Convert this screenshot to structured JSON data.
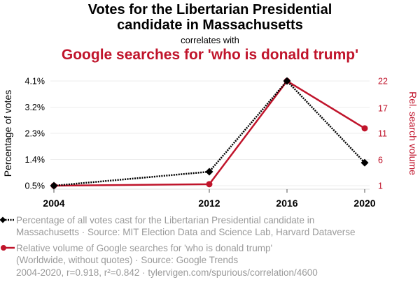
{
  "header": {
    "title_line1": "Votes for the Libertarian Presidential",
    "title_line2": "candidate in Massachusetts",
    "subtitle": "correlates with",
    "title2": "Google searches for 'who is donald trump'"
  },
  "colors": {
    "series1": "#000000",
    "series2": "#c0142b",
    "grid": "#eeeeee",
    "legend_text": "#9a9a9a"
  },
  "chart_data": {
    "type": "line",
    "x": [
      2004,
      2012,
      2016,
      2020
    ],
    "xticks": [
      "2004",
      "2012",
      "2016",
      "2020"
    ],
    "series": [
      {
        "name": "Percentage of votes",
        "axis": "left",
        "style": "dotted",
        "marker": "diamond",
        "values": [
          0.5,
          0.98,
          4.1,
          1.29
        ]
      },
      {
        "name": "Rel. search volume",
        "axis": "right",
        "style": "solid",
        "marker": "circle",
        "values": [
          1,
          1.3,
          22,
          12.5
        ]
      }
    ],
    "left_axis": {
      "label": "Percentage of votes",
      "ticks": [
        "0.5%",
        "1.4%",
        "2.3%",
        "3.2%",
        "4.1%"
      ],
      "tick_values": [
        0.5,
        1.4,
        2.3,
        3.2,
        4.1
      ],
      "range": [
        0.5,
        4.1
      ]
    },
    "right_axis": {
      "label": "Rel. search volume",
      "ticks": [
        "1",
        "6",
        "11",
        "17",
        "22"
      ],
      "tick_values": [
        1,
        6,
        11,
        16.75,
        22
      ],
      "range": [
        1,
        22
      ]
    },
    "grid": true
  },
  "legend": {
    "item1_line1": "Percentage of all votes cast for the Libertarian Presidential candidate in",
    "item1_line2": "Massachusetts · Source: MIT Election Data and Science Lab, Harvard Dataverse",
    "item2_line1": "Relative volume of Google searches for 'who is donald trump'",
    "item2_line2": "(Worldwide, without quotes) · Source: Google Trends"
  },
  "footer": "2004-2020, r=0.918, r²=0.842 · tylervigen.com/spurious/correlation/4600"
}
